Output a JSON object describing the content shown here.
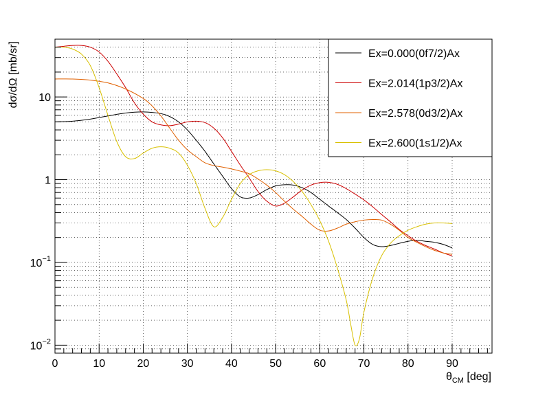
{
  "chart_data": {
    "type": "line",
    "title": "",
    "xlabel_main": "θ",
    "xlabel_sub": "CM",
    "xlabel_unit": " [deg]",
    "ylabel": "dσ/dΩ [mb/sr]",
    "xlim": [
      0,
      99
    ],
    "ylim": [
      0.008,
      50
    ],
    "yscale": "log",
    "grid": true,
    "legend_position": "top-right",
    "x_ticks": [
      "0",
      "10",
      "20",
      "30",
      "40",
      "50",
      "60",
      "70",
      "80",
      "90"
    ],
    "y_ticks": [
      {
        "value": 0.01,
        "base": "10",
        "exp": "−2"
      },
      {
        "value": 0.1,
        "base": "10",
        "exp": "−1"
      },
      {
        "value": 1,
        "base": "1",
        "exp": ""
      },
      {
        "value": 10,
        "base": "10",
        "exp": ""
      }
    ],
    "series": [
      {
        "name": "Ex=0.000(0f7/2)Ax",
        "color": "#000000",
        "x": [
          0,
          4,
          8,
          12,
          16,
          20,
          24,
          26,
          28,
          30,
          32,
          34,
          36,
          38,
          40,
          42,
          44,
          46,
          48,
          50,
          52,
          54,
          56,
          58,
          60,
          62,
          64,
          66,
          68,
          70,
          72,
          74,
          76,
          78,
          80,
          82,
          84,
          86,
          88,
          90
        ],
        "y": [
          5.0,
          5.1,
          5.4,
          5.9,
          6.4,
          6.6,
          6.3,
          5.8,
          5.0,
          4.0,
          3.0,
          2.2,
          1.55,
          1.1,
          0.78,
          0.62,
          0.6,
          0.66,
          0.76,
          0.84,
          0.87,
          0.86,
          0.8,
          0.7,
          0.58,
          0.48,
          0.4,
          0.33,
          0.26,
          0.2,
          0.165,
          0.155,
          0.16,
          0.17,
          0.18,
          0.185,
          0.18,
          0.175,
          0.165,
          0.15
        ]
      },
      {
        "name": "Ex=2.014(1p3/2)Ax",
        "color": "#cc0000",
        "x": [
          0,
          2,
          4,
          6,
          8,
          10,
          12,
          14,
          16,
          18,
          20,
          22,
          24,
          26,
          28,
          30,
          32,
          34,
          36,
          38,
          40,
          42,
          44,
          46,
          48,
          50,
          52,
          54,
          56,
          58,
          60,
          62,
          64,
          66,
          68,
          70,
          72,
          74,
          76,
          78,
          80,
          82,
          84,
          86,
          88,
          90
        ],
        "y": [
          40,
          41,
          42,
          42,
          40,
          35,
          27,
          19,
          13,
          8.5,
          6.2,
          5.0,
          4.6,
          4.5,
          4.7,
          5.0,
          5.1,
          4.9,
          4.2,
          3.2,
          2.2,
          1.5,
          1.05,
          0.72,
          0.55,
          0.48,
          0.52,
          0.62,
          0.75,
          0.86,
          0.92,
          0.93,
          0.88,
          0.78,
          0.67,
          0.57,
          0.47,
          0.38,
          0.31,
          0.25,
          0.21,
          0.18,
          0.16,
          0.145,
          0.13,
          0.12
        ]
      },
      {
        "name": "Ex=2.578(0d3/2)Ax",
        "color": "#e06000",
        "x": [
          0,
          4,
          8,
          12,
          16,
          20,
          22,
          24,
          26,
          28,
          30,
          32,
          34,
          36,
          38,
          40,
          42,
          44,
          46,
          48,
          50,
          52,
          54,
          56,
          58,
          60,
          62,
          64,
          66,
          68,
          70,
          72,
          74,
          76,
          78,
          80,
          82,
          84,
          86,
          88,
          90
        ],
        "y": [
          16.5,
          16.5,
          16,
          14.8,
          12.5,
          9.6,
          7.8,
          5.9,
          4.2,
          3.0,
          2.3,
          1.9,
          1.6,
          1.48,
          1.42,
          1.35,
          1.27,
          1.18,
          1.02,
          0.86,
          0.7,
          0.55,
          0.44,
          0.36,
          0.29,
          0.245,
          0.24,
          0.26,
          0.29,
          0.31,
          0.325,
          0.33,
          0.325,
          0.29,
          0.245,
          0.2,
          0.175,
          0.155,
          0.14,
          0.13,
          0.125
        ]
      },
      {
        "name": "Ex=2.600(1s1/2)Ax",
        "color": "#d8c000",
        "x": [
          0,
          2,
          4,
          6,
          8,
          10,
          12,
          14,
          16,
          18,
          20,
          22,
          24,
          26,
          28,
          30,
          32,
          34,
          36,
          38,
          40,
          42,
          44,
          46,
          48,
          50,
          52,
          54,
          56,
          58,
          60,
          62,
          64,
          66,
          67,
          68,
          69,
          70,
          72,
          74,
          76,
          78,
          80,
          82,
          84,
          86,
          88,
          90
        ],
        "y": [
          40,
          40,
          38,
          33,
          24,
          13,
          6.0,
          2.9,
          1.9,
          1.8,
          2.1,
          2.4,
          2.5,
          2.4,
          2.1,
          1.5,
          0.9,
          0.45,
          0.27,
          0.35,
          0.58,
          0.9,
          1.15,
          1.28,
          1.32,
          1.28,
          1.15,
          0.95,
          0.72,
          0.5,
          0.32,
          0.18,
          0.085,
          0.035,
          0.018,
          0.01,
          0.012,
          0.025,
          0.065,
          0.12,
          0.17,
          0.21,
          0.245,
          0.27,
          0.29,
          0.3,
          0.3,
          0.295
        ]
      }
    ]
  }
}
